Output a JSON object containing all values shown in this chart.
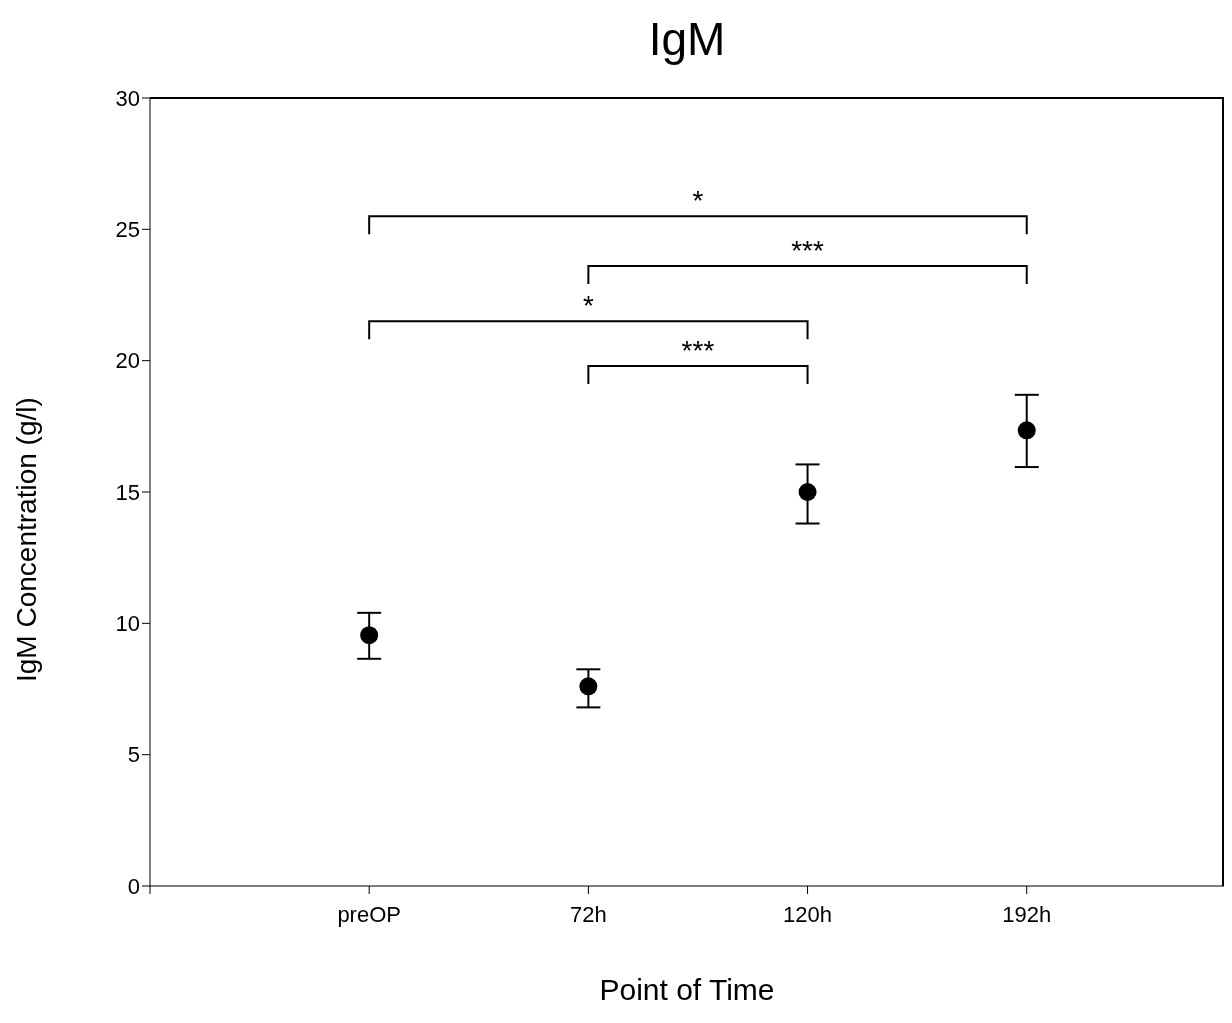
{
  "chart_data": {
    "type": "scatter",
    "title": "IgM",
    "xlabel": "Point of Time",
    "ylabel": "IgM Concentration (g/l)",
    "categories": [
      "preOP",
      "72h",
      "120h",
      "192h"
    ],
    "values": [
      9.55,
      7.6,
      15.0,
      17.35
    ],
    "errors": [
      [
        8.65,
        10.4
      ],
      [
        6.8,
        8.25
      ],
      [
        13.8,
        16.05
      ],
      [
        15.95,
        18.7
      ]
    ],
    "color": "#000000",
    "marker": "circle",
    "ylim": [
      0,
      30
    ],
    "yticks": [
      0,
      5,
      10,
      15,
      20,
      25,
      30
    ],
    "annotations": [
      "*",
      "***",
      "*",
      "***"
    ]
  }
}
